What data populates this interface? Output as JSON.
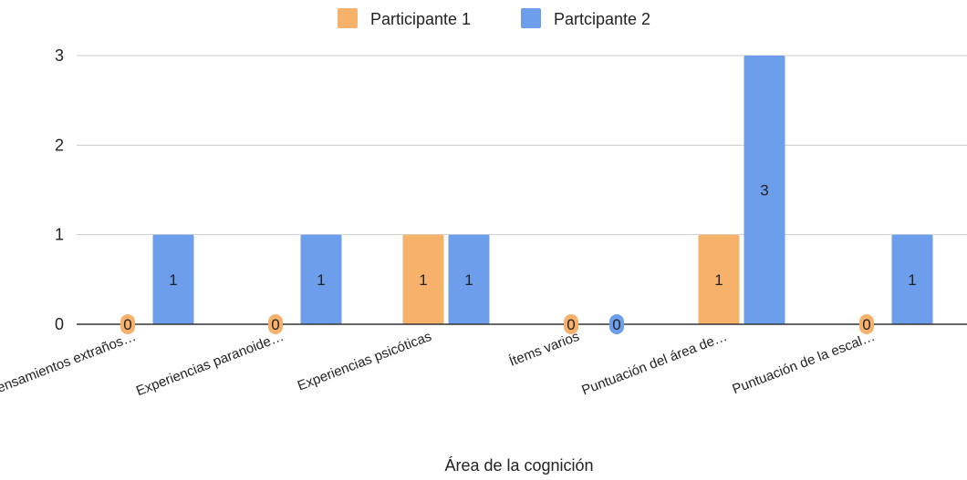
{
  "chart_data": {
    "type": "bar",
    "title": "",
    "xlabel": "Área de la cognición",
    "ylabel": "",
    "ylim": [
      0,
      3
    ],
    "yticks": [
      "0",
      "1",
      "2",
      "3"
    ],
    "grid": true,
    "legend_position": "top",
    "categories": [
      "Pensamientos extraños…",
      "Experiencias paranoide…",
      "Experiencias psicóticas",
      "Ítems varios",
      "Puntuación del área de…",
      "Puntuación de la escal…"
    ],
    "series": [
      {
        "name": "Participante 1",
        "color": "#F6B26B",
        "values": [
          0,
          0,
          1,
          0,
          1,
          0
        ]
      },
      {
        "name": "Partcipante 2",
        "color": "#6D9EEB",
        "values": [
          1,
          1,
          1,
          0,
          3,
          1
        ]
      }
    ]
  }
}
